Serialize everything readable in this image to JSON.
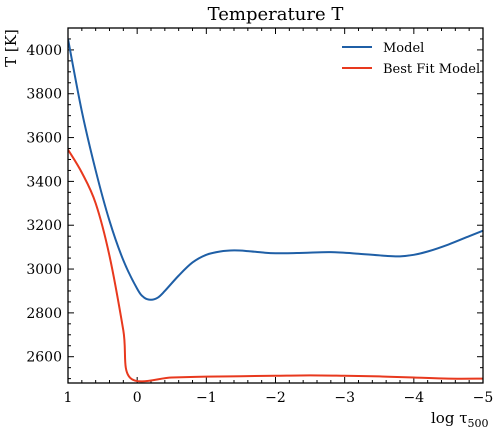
{
  "chart_data": {
    "type": "line",
    "title": "Temperature T",
    "ylabel": "T [K]",
    "xlabel": "log τ",
    "xlabel_sub": "500",
    "xlim": [
      1,
      -5
    ],
    "ylim": [
      2480,
      4100
    ],
    "xticks": [
      1,
      0,
      -1,
      -2,
      -3,
      -4,
      -5
    ],
    "xtick_labels": [
      "1",
      "0",
      "−1",
      "−2",
      "−3",
      "−4",
      "−5"
    ],
    "yticks": [
      2600,
      2800,
      3000,
      3200,
      3400,
      3600,
      3800,
      4000
    ],
    "yminor_step": 50,
    "xminor_step": 0.2,
    "grid": false,
    "legend_position": "top-right",
    "series": [
      {
        "name": "Model",
        "color": "#1f5fa6",
        "x": [
          1.0,
          0.8,
          0.6,
          0.4,
          0.2,
          0.0,
          -0.1,
          -0.2,
          -0.3,
          -0.4,
          -0.6,
          -0.8,
          -1.0,
          -1.2,
          -1.4,
          -1.6,
          -1.8,
          -2.0,
          -2.4,
          -2.8,
          -3.2,
          -3.6,
          -3.8,
          -4.0,
          -4.2,
          -4.5,
          -4.8,
          -5.0
        ],
        "y": [
          4050,
          3720,
          3450,
          3220,
          3040,
          2910,
          2870,
          2860,
          2870,
          2900,
          2970,
          3030,
          3065,
          3080,
          3085,
          3082,
          3076,
          3072,
          3074,
          3077,
          3070,
          3060,
          3058,
          3065,
          3080,
          3112,
          3150,
          3175
        ]
      },
      {
        "name": "Best Fit Model",
        "color": "#e8391e",
        "x": [
          1.0,
          0.8,
          0.6,
          0.4,
          0.2,
          0.1,
          -0.5,
          -1.0,
          -1.5,
          -2.0,
          -2.5,
          -3.0,
          -3.5,
          -4.0,
          -4.5,
          -5.0
        ],
        "y": [
          3545,
          3440,
          3300,
          3060,
          2720,
          2503,
          2505,
          2509,
          2511,
          2513,
          2515,
          2513,
          2510,
          2505,
          2500,
          2500
        ]
      }
    ]
  }
}
